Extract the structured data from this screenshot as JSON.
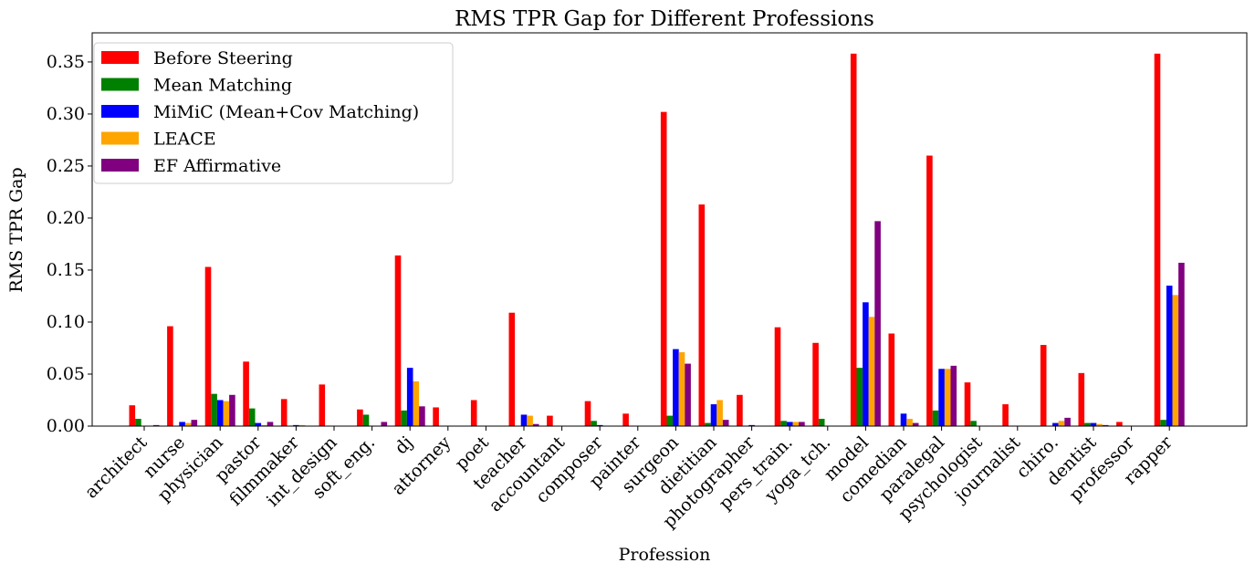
{
  "chart_data": {
    "type": "bar",
    "title": "RMS TPR Gap for Different Professions",
    "xlabel": "Profession",
    "ylabel": "RMS TPR Gap",
    "ylim": [
      0,
      0.378
    ],
    "yticks": [
      "0.00",
      "0.05",
      "0.10",
      "0.15",
      "0.20",
      "0.25",
      "0.30",
      "0.35"
    ],
    "legend_position": "top-left",
    "categories": [
      "architect",
      "nurse",
      "physician",
      "pastor",
      "filmmaker",
      "int_design",
      "soft_eng.",
      "dj",
      "attorney",
      "poet",
      "teacher",
      "accountant",
      "composer",
      "painter",
      "surgeon",
      "dietitian",
      "photographer",
      "pers_train.",
      "yoga_tch.",
      "model",
      "comedian",
      "paralegal",
      "psychologist",
      "journalist",
      "chiro.",
      "dentist",
      "professor",
      "rapper"
    ],
    "series": [
      {
        "name": "Before Steering",
        "color": "#ff0000",
        "values": [
          0.02,
          0.096,
          0.153,
          0.062,
          0.026,
          0.04,
          0.016,
          0.164,
          0.018,
          0.025,
          0.109,
          0.01,
          0.024,
          0.012,
          0.302,
          0.213,
          0.03,
          0.095,
          0.08,
          0.358,
          0.089,
          0.26,
          0.042,
          0.021,
          0.078,
          0.051,
          0.004,
          0.358
        ]
      },
      {
        "name": "Mean Matching",
        "color": "#008000",
        "values": [
          0.007,
          0.0,
          0.031,
          0.017,
          0.0,
          0.0,
          0.011,
          0.015,
          0.0,
          0.0,
          0.0,
          0.0,
          0.005,
          0.0,
          0.01,
          0.003,
          0.0,
          0.005,
          0.007,
          0.056,
          0.0,
          0.015,
          0.005,
          0.0,
          0.0,
          0.003,
          0.0,
          0.006
        ]
      },
      {
        "name": "MiMiC (Mean+Cov Matching)",
        "color": "#0000ff",
        "values": [
          0.0,
          0.004,
          0.025,
          0.003,
          0.001,
          0.0,
          0.0,
          0.056,
          0.0,
          0.0,
          0.011,
          0.0,
          0.001,
          0.0,
          0.074,
          0.021,
          0.001,
          0.004,
          0.0,
          0.119,
          0.012,
          0.055,
          0.0,
          0.0,
          0.003,
          0.003,
          0.0,
          0.135
        ]
      },
      {
        "name": "LEACE",
        "color": "#ffa500",
        "values": [
          0.0,
          0.003,
          0.024,
          0.001,
          0.001,
          0.0,
          0.0,
          0.043,
          0.0,
          0.0,
          0.01,
          0.0,
          0.0,
          0.0,
          0.071,
          0.025,
          0.0,
          0.004,
          0.0,
          0.105,
          0.007,
          0.055,
          0.0,
          0.0,
          0.005,
          0.002,
          0.0,
          0.126
        ]
      },
      {
        "name": "EF Affirmative",
        "color": "#800080",
        "values": [
          0.001,
          0.006,
          0.03,
          0.004,
          0.0,
          0.0,
          0.004,
          0.019,
          0.0,
          0.0,
          0.002,
          0.0,
          0.0,
          0.0,
          0.06,
          0.006,
          0.0,
          0.004,
          0.0,
          0.197,
          0.003,
          0.058,
          0.0,
          0.0,
          0.008,
          0.001,
          0.0,
          0.157
        ]
      }
    ]
  }
}
